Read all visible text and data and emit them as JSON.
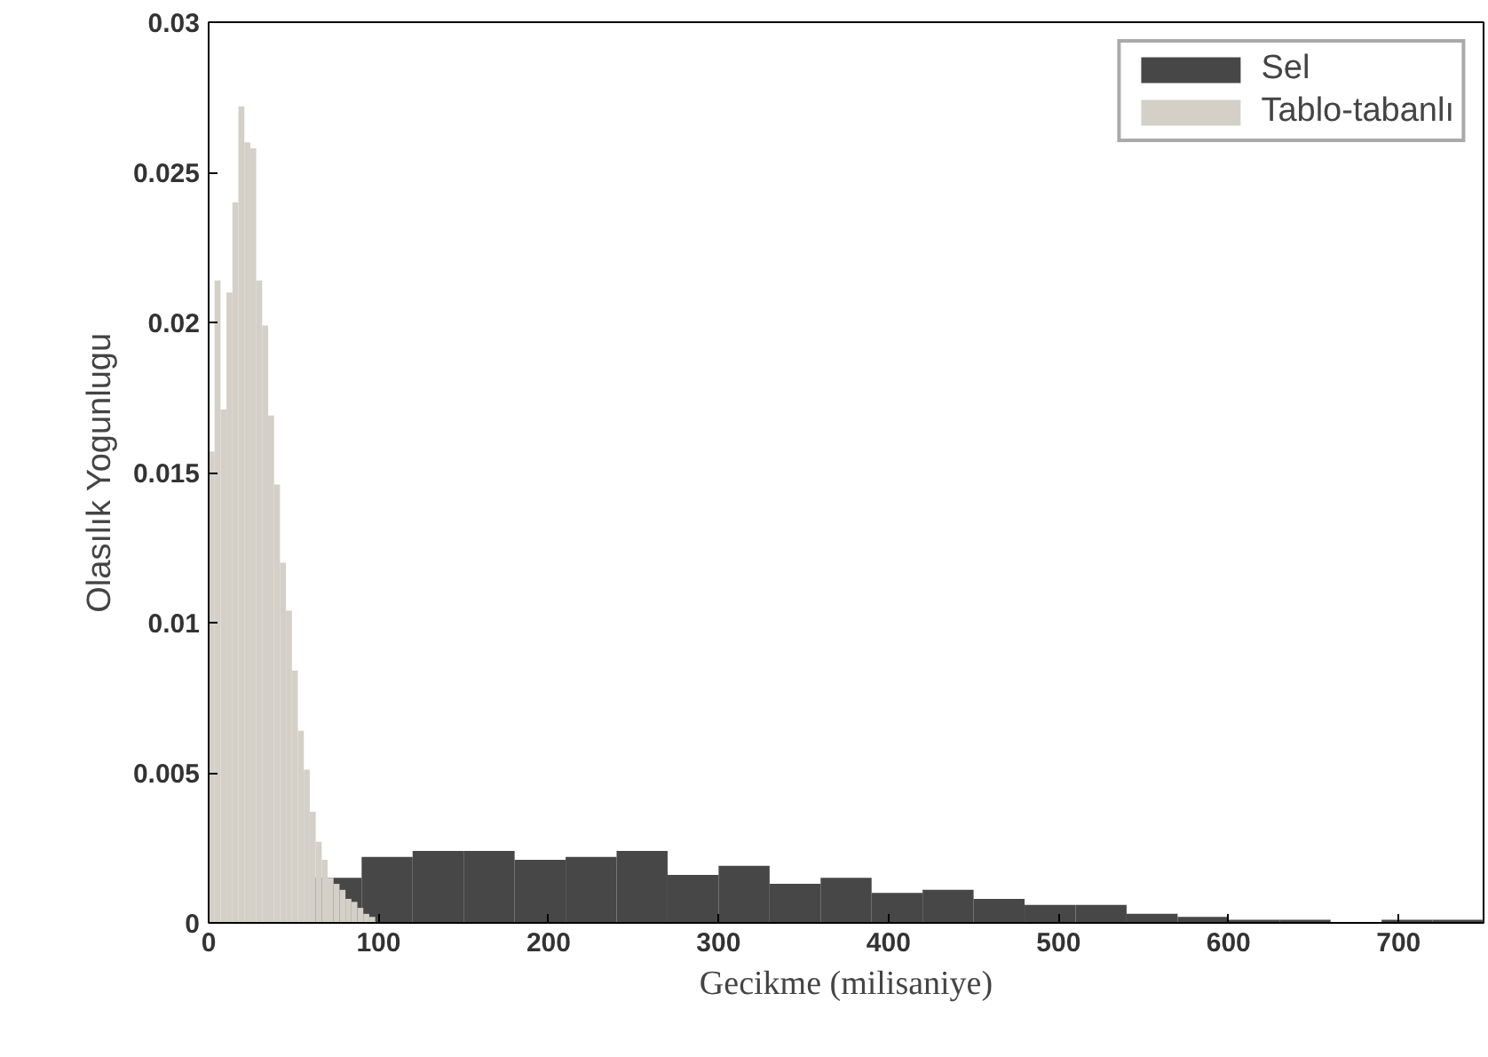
{
  "chart_data": {
    "type": "bar",
    "xlabel": "Gecikme (milisaniye)",
    "ylabel": "Olasılık Yogunlugu",
    "xlim": [
      0,
      750
    ],
    "ylim": [
      0,
      0.03
    ],
    "xticks": [
      0,
      100,
      200,
      300,
      400,
      500,
      600,
      700
    ],
    "yticks": [
      0,
      0.005,
      0.01,
      0.015,
      0.02,
      0.025,
      0.03
    ],
    "grid": false,
    "legend": "top right",
    "series": [
      {
        "name": "Sel",
        "color": "#474747",
        "x": [
          75,
          105,
          135,
          165,
          195,
          225,
          255,
          285,
          315,
          345,
          375,
          405,
          435,
          465,
          495,
          525,
          555,
          585,
          615,
          645,
          675,
          705,
          735
        ],
        "values": [
          0.0015,
          0.0022,
          0.0024,
          0.0024,
          0.0021,
          0.0022,
          0.0024,
          0.0016,
          0.0019,
          0.0013,
          0.0015,
          0.001,
          0.0011,
          0.0008,
          0.0006,
          0.0006,
          0.0003,
          0.0002,
          0.0001,
          0.0001,
          0,
          0.0001,
          0.0001
        ]
      },
      {
        "name": "Tablo-tabanlı",
        "color": "#d4d0c8",
        "x": [
          1.75,
          5.25,
          8.75,
          12.25,
          15.75,
          19.25,
          22.75,
          26.25,
          29.75,
          33.25,
          36.75,
          40.25,
          43.75,
          47.25,
          50.75,
          54.25,
          57.75,
          61.25,
          64.75,
          68.25,
          71.75,
          75.25,
          78.75,
          82.25,
          85.75,
          89.25,
          92.75,
          96.25
        ],
        "values": [
          0.0157,
          0.0214,
          0.0171,
          0.021,
          0.024,
          0.0272,
          0.026,
          0.0258,
          0.0214,
          0.0199,
          0.0169,
          0.0146,
          0.012,
          0.0104,
          0.0084,
          0.0064,
          0.0051,
          0.0037,
          0.0027,
          0.0021,
          0.0015,
          0.0013,
          0.0011,
          0.0008,
          0.0007,
          0.0005,
          0.0003,
          0.0002
        ]
      }
    ]
  }
}
